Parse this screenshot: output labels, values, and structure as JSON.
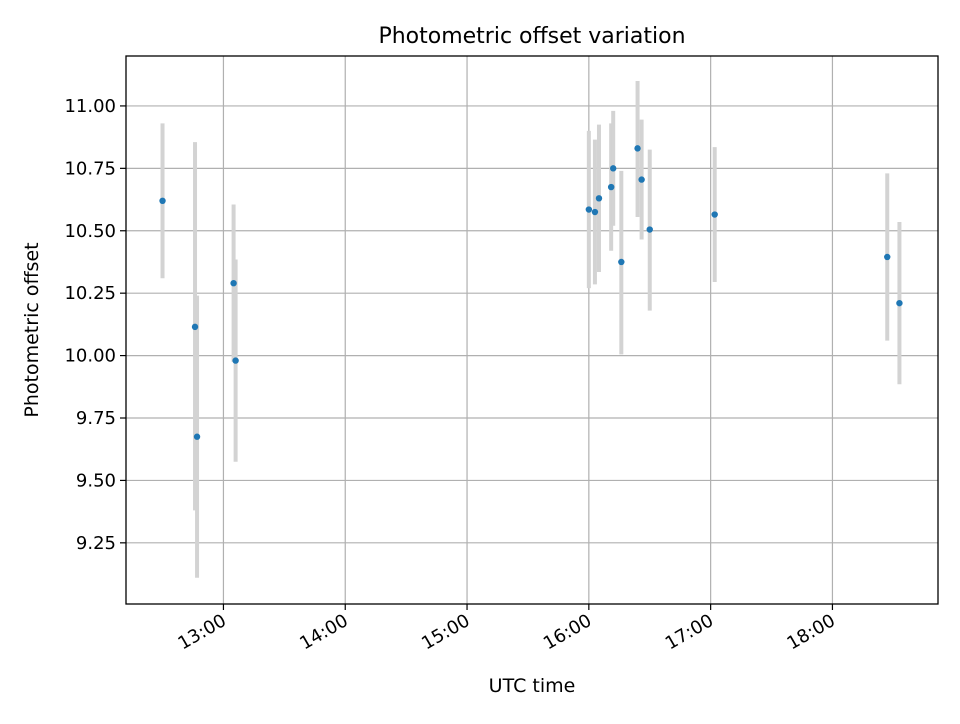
{
  "chart_data": {
    "type": "scatter",
    "title": "Photometric offset variation",
    "xlabel": "UTC time",
    "ylabel": "Photometric offset",
    "x_type": "time",
    "xlim": [
      "12:12",
      "18:52"
    ],
    "ylim": [
      9.005,
      11.2
    ],
    "grid": true,
    "x_ticks": [
      {
        "value": "13:00",
        "label": "13:00"
      },
      {
        "value": "14:00",
        "label": "14:00"
      },
      {
        "value": "15:00",
        "label": "15:00"
      },
      {
        "value": "16:00",
        "label": "16:00"
      },
      {
        "value": "17:00",
        "label": "17:00"
      },
      {
        "value": "18:00",
        "label": "18:00"
      }
    ],
    "y_ticks": [
      {
        "value": 9.25,
        "label": "9.25"
      },
      {
        "value": 9.5,
        "label": "9.50"
      },
      {
        "value": 9.75,
        "label": "9.75"
      },
      {
        "value": 10.0,
        "label": "10.00"
      },
      {
        "value": 10.25,
        "label": "10.25"
      },
      {
        "value": 10.5,
        "label": "10.50"
      },
      {
        "value": 10.75,
        "label": "10.75"
      },
      {
        "value": 11.0,
        "label": "11.00"
      }
    ],
    "points": [
      {
        "x": "12:30",
        "y": 10.62,
        "yerr_low": 10.31,
        "yerr_high": 10.93
      },
      {
        "x": "12:46",
        "y": 10.115,
        "yerr_low": 9.38,
        "yerr_high": 10.855
      },
      {
        "x": "12:47",
        "y": 9.675,
        "yerr_low": 9.11,
        "yerr_high": 10.24
      },
      {
        "x": "13:05",
        "y": 10.29,
        "yerr_low": 9.975,
        "yerr_high": 10.605
      },
      {
        "x": "13:06",
        "y": 9.98,
        "yerr_low": 9.575,
        "yerr_high": 10.385
      },
      {
        "x": "16:00",
        "y": 10.585,
        "yerr_low": 10.27,
        "yerr_high": 10.9
      },
      {
        "x": "16:03",
        "y": 10.575,
        "yerr_low": 10.285,
        "yerr_high": 10.865
      },
      {
        "x": "16:05",
        "y": 10.63,
        "yerr_low": 10.335,
        "yerr_high": 10.925
      },
      {
        "x": "16:11",
        "y": 10.675,
        "yerr_low": 10.42,
        "yerr_high": 10.93
      },
      {
        "x": "16:12",
        "y": 10.75,
        "yerr_low": 10.52,
        "yerr_high": 10.98
      },
      {
        "x": "16:16",
        "y": 10.375,
        "yerr_low": 10.005,
        "yerr_high": 10.74
      },
      {
        "x": "16:24",
        "y": 10.83,
        "yerr_low": 10.555,
        "yerr_high": 11.1
      },
      {
        "x": "16:26",
        "y": 10.705,
        "yerr_low": 10.465,
        "yerr_high": 10.945
      },
      {
        "x": "16:30",
        "y": 10.505,
        "yerr_low": 10.18,
        "yerr_high": 10.825
      },
      {
        "x": "17:02",
        "y": 10.565,
        "yerr_low": 10.295,
        "yerr_high": 10.835
      },
      {
        "x": "18:27",
        "y": 10.395,
        "yerr_low": 10.06,
        "yerr_high": 10.73
      },
      {
        "x": "18:33",
        "y": 10.21,
        "yerr_low": 9.885,
        "yerr_high": 10.535
      }
    ],
    "colors": {
      "points": "#1f77b4",
      "errorbars": "#d3d3d3",
      "grid": "#b0b0b0"
    }
  }
}
